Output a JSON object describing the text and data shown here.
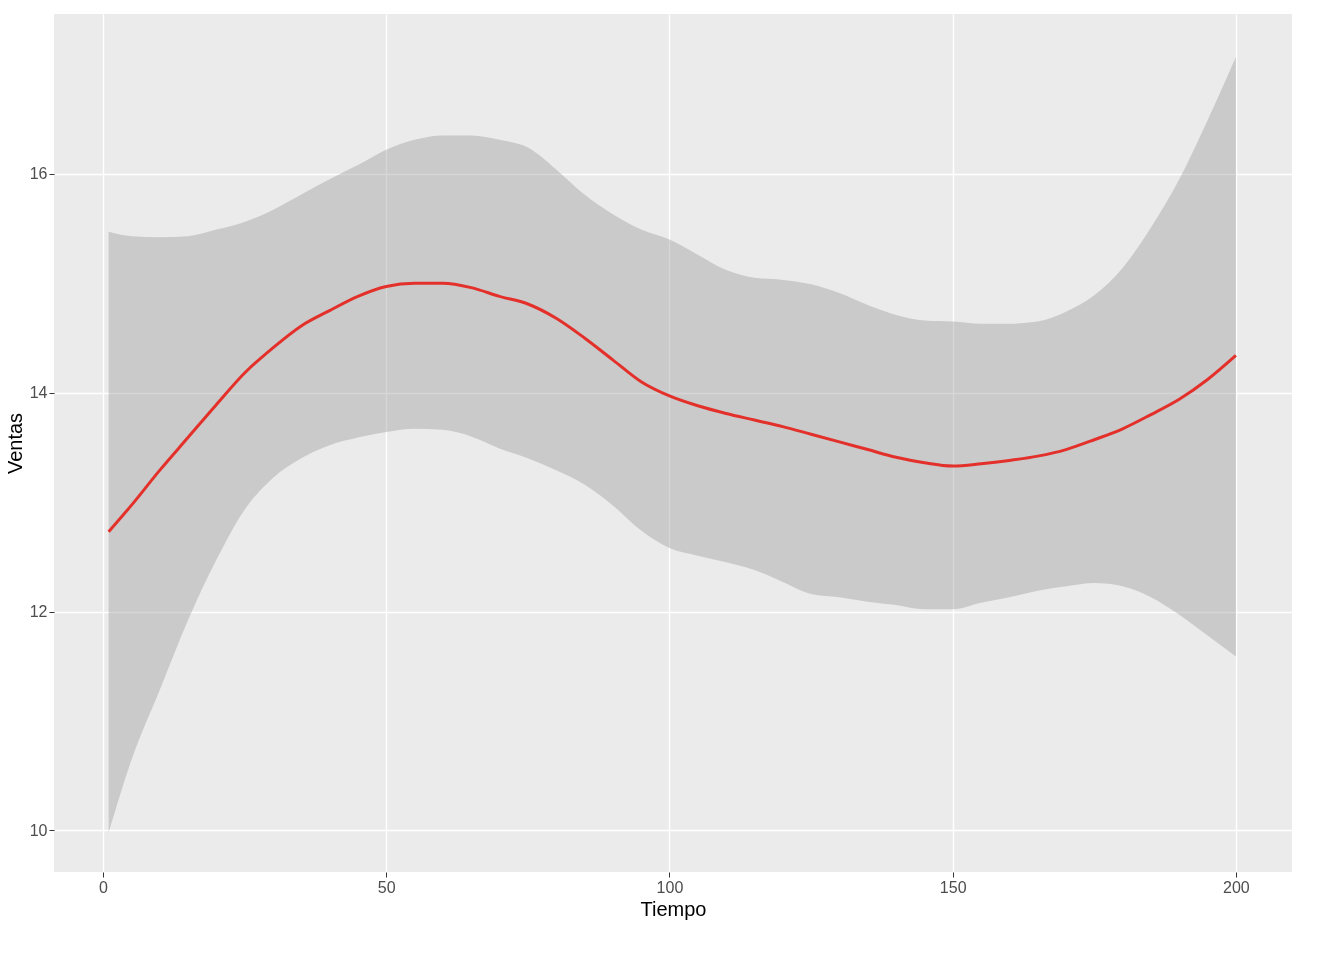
{
  "chart_data": {
    "type": "line",
    "xlabel": "Tiempo",
    "ylabel": "Ventas",
    "x": [
      1,
      5,
      10,
      15,
      20,
      25,
      30,
      35,
      40,
      45,
      50,
      55,
      60,
      65,
      70,
      75,
      80,
      85,
      90,
      95,
      100,
      105,
      110,
      115,
      120,
      125,
      130,
      135,
      140,
      145,
      150,
      155,
      160,
      165,
      170,
      175,
      180,
      185,
      190,
      195,
      200
    ],
    "series": [
      {
        "color": "#e3302a",
        "values": [
          12.73,
          12.97,
          13.29,
          13.59,
          13.89,
          14.18,
          14.41,
          14.61,
          14.75,
          14.88,
          14.97,
          15.0,
          15.0,
          14.96,
          14.88,
          14.81,
          14.68,
          14.5,
          14.3,
          14.1,
          13.97,
          13.88,
          13.81,
          13.75,
          13.69,
          13.62,
          13.55,
          13.48,
          13.41,
          13.36,
          13.33,
          13.35,
          13.38,
          13.42,
          13.48,
          13.57,
          13.67,
          13.8,
          13.94,
          14.12,
          14.34
        ],
        "upper": [
          15.47,
          15.43,
          15.42,
          15.43,
          15.49,
          15.56,
          15.67,
          15.81,
          15.95,
          16.08,
          16.22,
          16.31,
          16.35,
          16.35,
          16.31,
          16.24,
          16.04,
          15.81,
          15.63,
          15.49,
          15.4,
          15.26,
          15.12,
          15.05,
          15.03,
          14.99,
          14.91,
          14.8,
          14.71,
          14.66,
          14.65,
          14.63,
          14.63,
          14.65,
          14.74,
          14.89,
          15.14,
          15.51,
          15.95,
          16.49,
          17.07
        ],
        "lower": [
          9.98,
          10.64,
          11.28,
          11.92,
          12.47,
          12.93,
          13.22,
          13.4,
          13.52,
          13.59,
          13.64,
          13.67,
          13.66,
          13.6,
          13.49,
          13.4,
          13.29,
          13.16,
          12.97,
          12.74,
          12.58,
          12.51,
          12.45,
          12.38,
          12.27,
          12.16,
          12.13,
          12.09,
          12.06,
          12.02,
          12.02,
          12.08,
          12.13,
          12.19,
          12.23,
          12.26,
          12.23,
          12.13,
          11.97,
          11.78,
          11.59
        ]
      }
    ],
    "xlim": [
      -8.65,
      209.9
    ],
    "ylim": [
      9.62,
      17.46
    ],
    "xticks": [
      0,
      50,
      100,
      150,
      200
    ],
    "yticks": [
      10,
      12,
      14,
      16
    ],
    "grid": true,
    "line_style": "solid",
    "marker": "none"
  }
}
